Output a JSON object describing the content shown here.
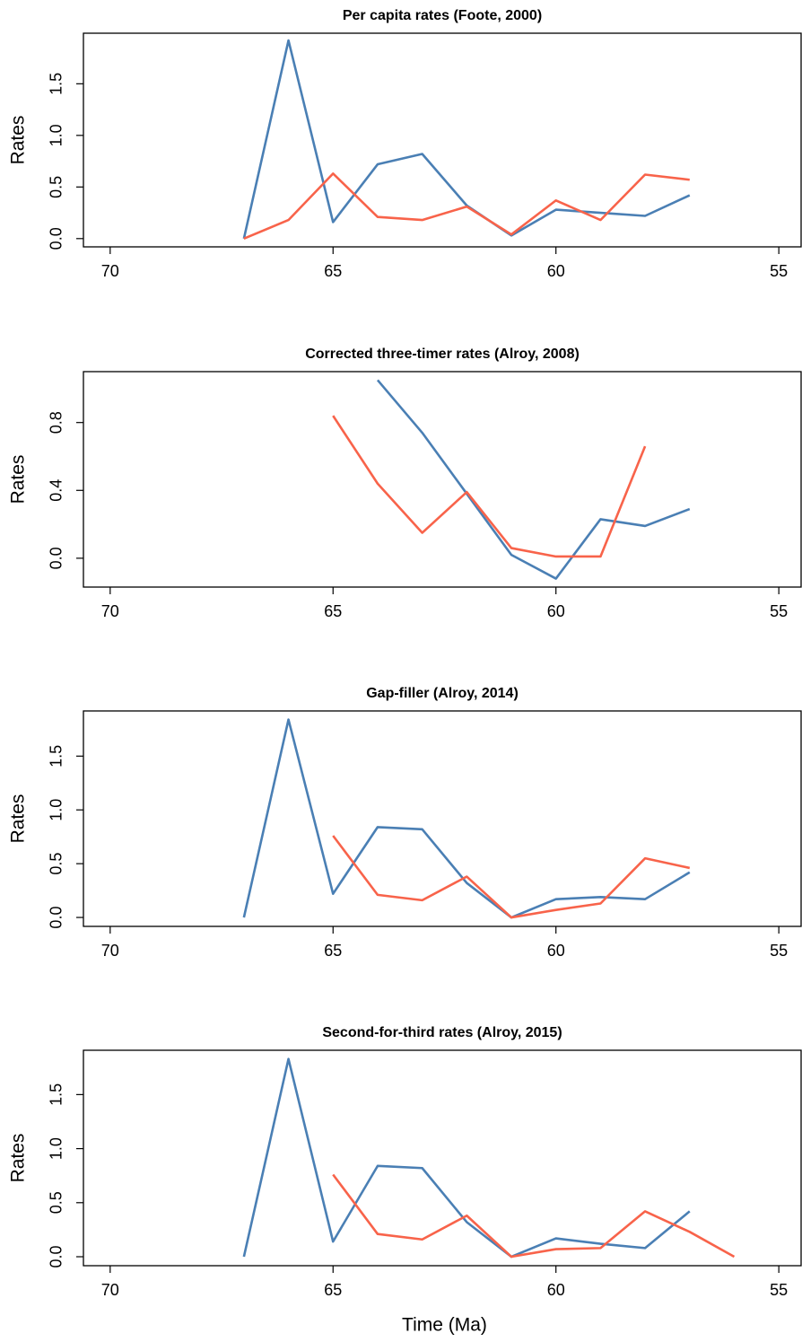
{
  "chart_data": [
    {
      "type": "line",
      "title": "Per capita rates (Foote, 2000)",
      "ylabel": "Rates",
      "x": [
        67,
        66,
        65,
        64,
        63,
        62,
        61,
        60,
        59,
        58,
        57
      ],
      "series": [
        {
          "color": "#4a7fb4",
          "values": [
            0,
            1.92,
            0.16,
            0.72,
            0.82,
            0.32,
            0.03,
            0.28,
            0.25,
            0.22,
            0.42
          ]
        },
        {
          "color": "#f8634a",
          "values": [
            0,
            0.18,
            0.63,
            0.21,
            0.18,
            0.31,
            0.04,
            0.37,
            0.18,
            0.62,
            0.57
          ]
        }
      ],
      "xlim": [
        70.6,
        54.5
      ],
      "xticks": [
        70,
        65,
        60,
        55
      ],
      "ylim": [
        -0.08,
        1.99
      ],
      "yticks": [
        {
          "value": 0,
          "label": "0.0"
        },
        0.5,
        {
          "value": 1,
          "label": "1.0"
        },
        1.5
      ]
    },
    {
      "type": "line",
      "title": "Corrected three-timer rates (Alroy, 2008)",
      "ylabel": "Rates",
      "x": [
        65,
        64,
        63,
        62,
        61,
        60,
        59,
        58,
        57
      ],
      "series": [
        {
          "color": "#4a7fb4",
          "values": [
            null,
            1.05,
            0.74,
            0.38,
            0.02,
            -0.12,
            0.23,
            0.19,
            0.29
          ]
        },
        {
          "color": "#f8634a",
          "values": [
            0.84,
            0.44,
            0.15,
            0.39,
            0.06,
            0.01,
            0.01,
            0.66,
            null
          ]
        }
      ],
      "xlim": [
        70.6,
        54.5
      ],
      "xticks": [
        70,
        65,
        60,
        55
      ],
      "ylim": [
        -0.17,
        1.1
      ],
      "yticks": [
        {
          "value": 0,
          "label": "0.0"
        },
        0.4,
        0.8
      ]
    },
    {
      "type": "line",
      "title": "Gap-filler (Alroy, 2014)",
      "ylabel": "Rates",
      "x": [
        67,
        66,
        65,
        64,
        63,
        62,
        61,
        60,
        59,
        58,
        57
      ],
      "series": [
        {
          "color": "#4a7fb4",
          "values": [
            0,
            1.84,
            0.22,
            0.84,
            0.82,
            0.32,
            0,
            0.17,
            0.19,
            0.17,
            0.42
          ]
        },
        {
          "color": "#f8634a",
          "values": [
            null,
            null,
            0.76,
            0.21,
            0.16,
            0.38,
            0,
            0.07,
            0.13,
            0.55,
            0.46
          ]
        }
      ],
      "xlim": [
        70.6,
        54.5
      ],
      "xticks": [
        70,
        65,
        60,
        55
      ],
      "ylim": [
        -0.083,
        1.92
      ],
      "yticks": [
        {
          "value": 0,
          "label": "0.0"
        },
        0.5,
        {
          "value": 1,
          "label": "1.0"
        },
        1.5
      ]
    },
    {
      "type": "line",
      "title": "Second-for-third rates (Alroy, 2015)",
      "ylabel": "Rates",
      "xlabel": "Time (Ma)",
      "x": [
        67,
        66,
        65,
        64,
        63,
        62,
        61,
        60,
        59,
        58,
        57,
        56
      ],
      "series": [
        {
          "color": "#4a7fb4",
          "values": [
            0,
            1.83,
            0.14,
            0.84,
            0.82,
            0.32,
            0,
            0.17,
            0.12,
            0.08,
            0.42,
            null
          ]
        },
        {
          "color": "#f8634a",
          "values": [
            null,
            null,
            0.76,
            0.21,
            0.16,
            0.38,
            0,
            0.07,
            0.08,
            0.42,
            0.23,
            0
          ]
        }
      ],
      "xlim": [
        70.6,
        54.5
      ],
      "xticks": [
        70,
        65,
        60,
        55
      ],
      "ylim": [
        -0.083,
        1.91
      ],
      "yticks": [
        {
          "value": 0,
          "label": "0.0"
        },
        0.5,
        {
          "value": 1,
          "label": "1.0"
        },
        1.5
      ]
    }
  ]
}
